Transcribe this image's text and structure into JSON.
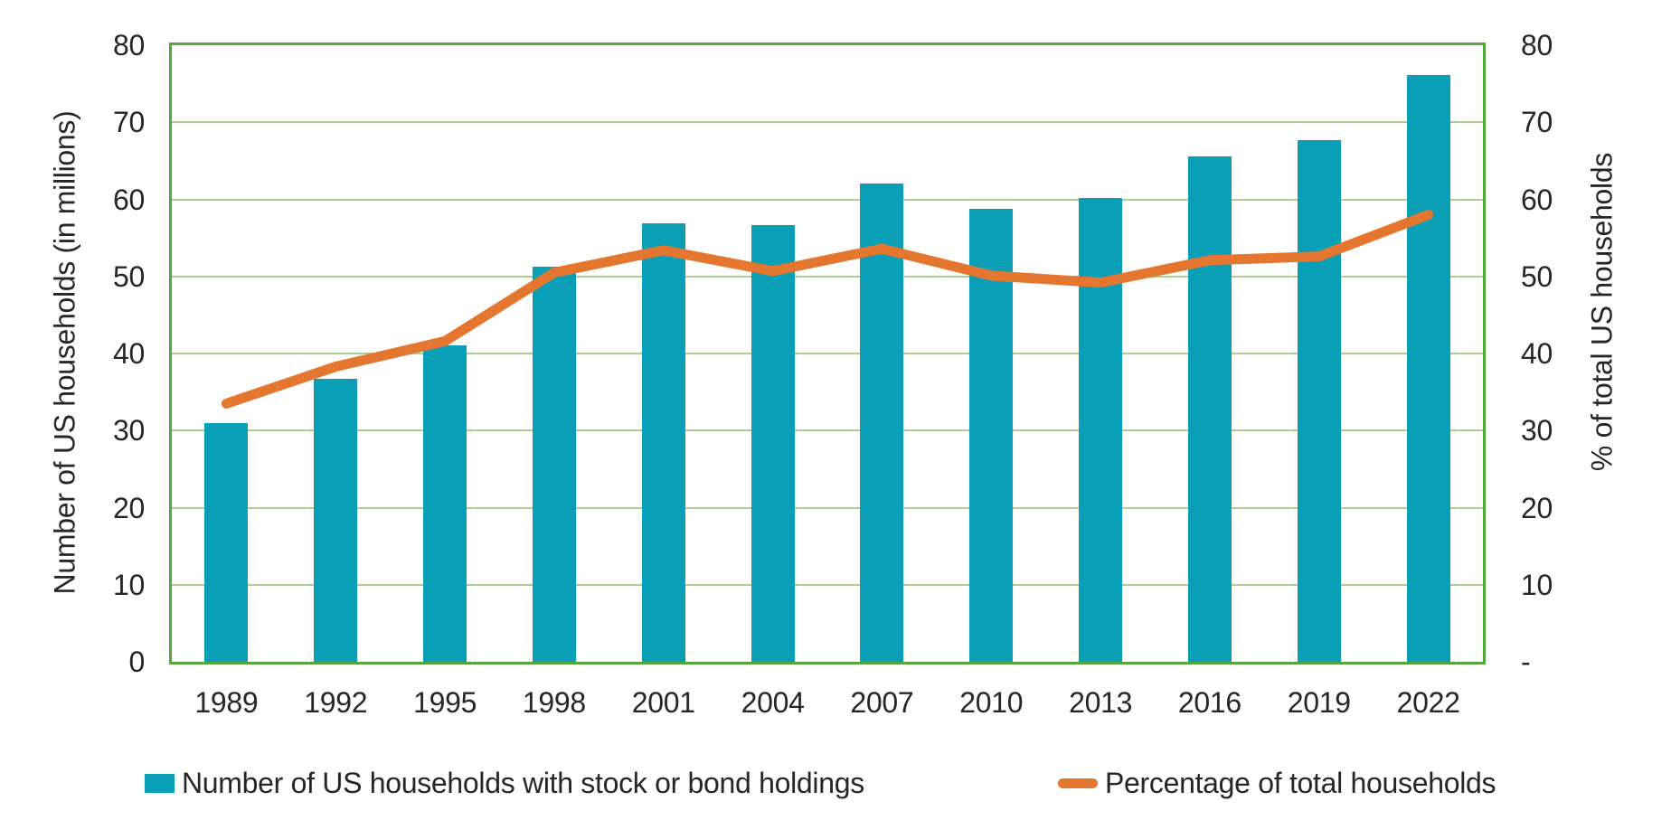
{
  "chart_data": {
    "type": "bar",
    "title": "",
    "categories": [
      "1989",
      "1992",
      "1995",
      "1998",
      "2001",
      "2004",
      "2007",
      "2010",
      "2013",
      "2016",
      "2019",
      "2022"
    ],
    "series": [
      {
        "name": "Number of US households with stock or bond holdings",
        "type": "bar",
        "yaxis": "left",
        "values": [
          31.0,
          36.7,
          41.0,
          51.3,
          56.9,
          56.7,
          62.1,
          58.8,
          60.2,
          65.6,
          67.7,
          76.1
        ]
      },
      {
        "name": "Percentage of total households",
        "type": "line",
        "yaxis": "right",
        "values": [
          33.5,
          38.3,
          41.6,
          50.5,
          53.4,
          50.7,
          53.6,
          50.1,
          49.2,
          52.1,
          52.6,
          58.0
        ]
      }
    ],
    "left_axis": {
      "label": "Number of US households (in millions)",
      "min": 0,
      "max": 80,
      "tick_step": 10,
      "tick_labels": [
        "80",
        "70",
        "60",
        "50",
        "40",
        "30",
        "20",
        "10",
        "0"
      ]
    },
    "right_axis": {
      "label": "% of total US households",
      "min": 0,
      "max": 80,
      "tick_step": 10,
      "tick_labels": [
        "80",
        "70",
        "60",
        "50",
        "40",
        "30",
        "20",
        "10",
        "-"
      ]
    },
    "grid": "horizontal-major",
    "legend_position": "bottom"
  },
  "colors": {
    "bar": "#0b9eb7",
    "line": "#e5762f",
    "plot_border": "#54a63d",
    "gridline": "#a9d18e",
    "text": "#262626",
    "background": "#ffffff"
  }
}
